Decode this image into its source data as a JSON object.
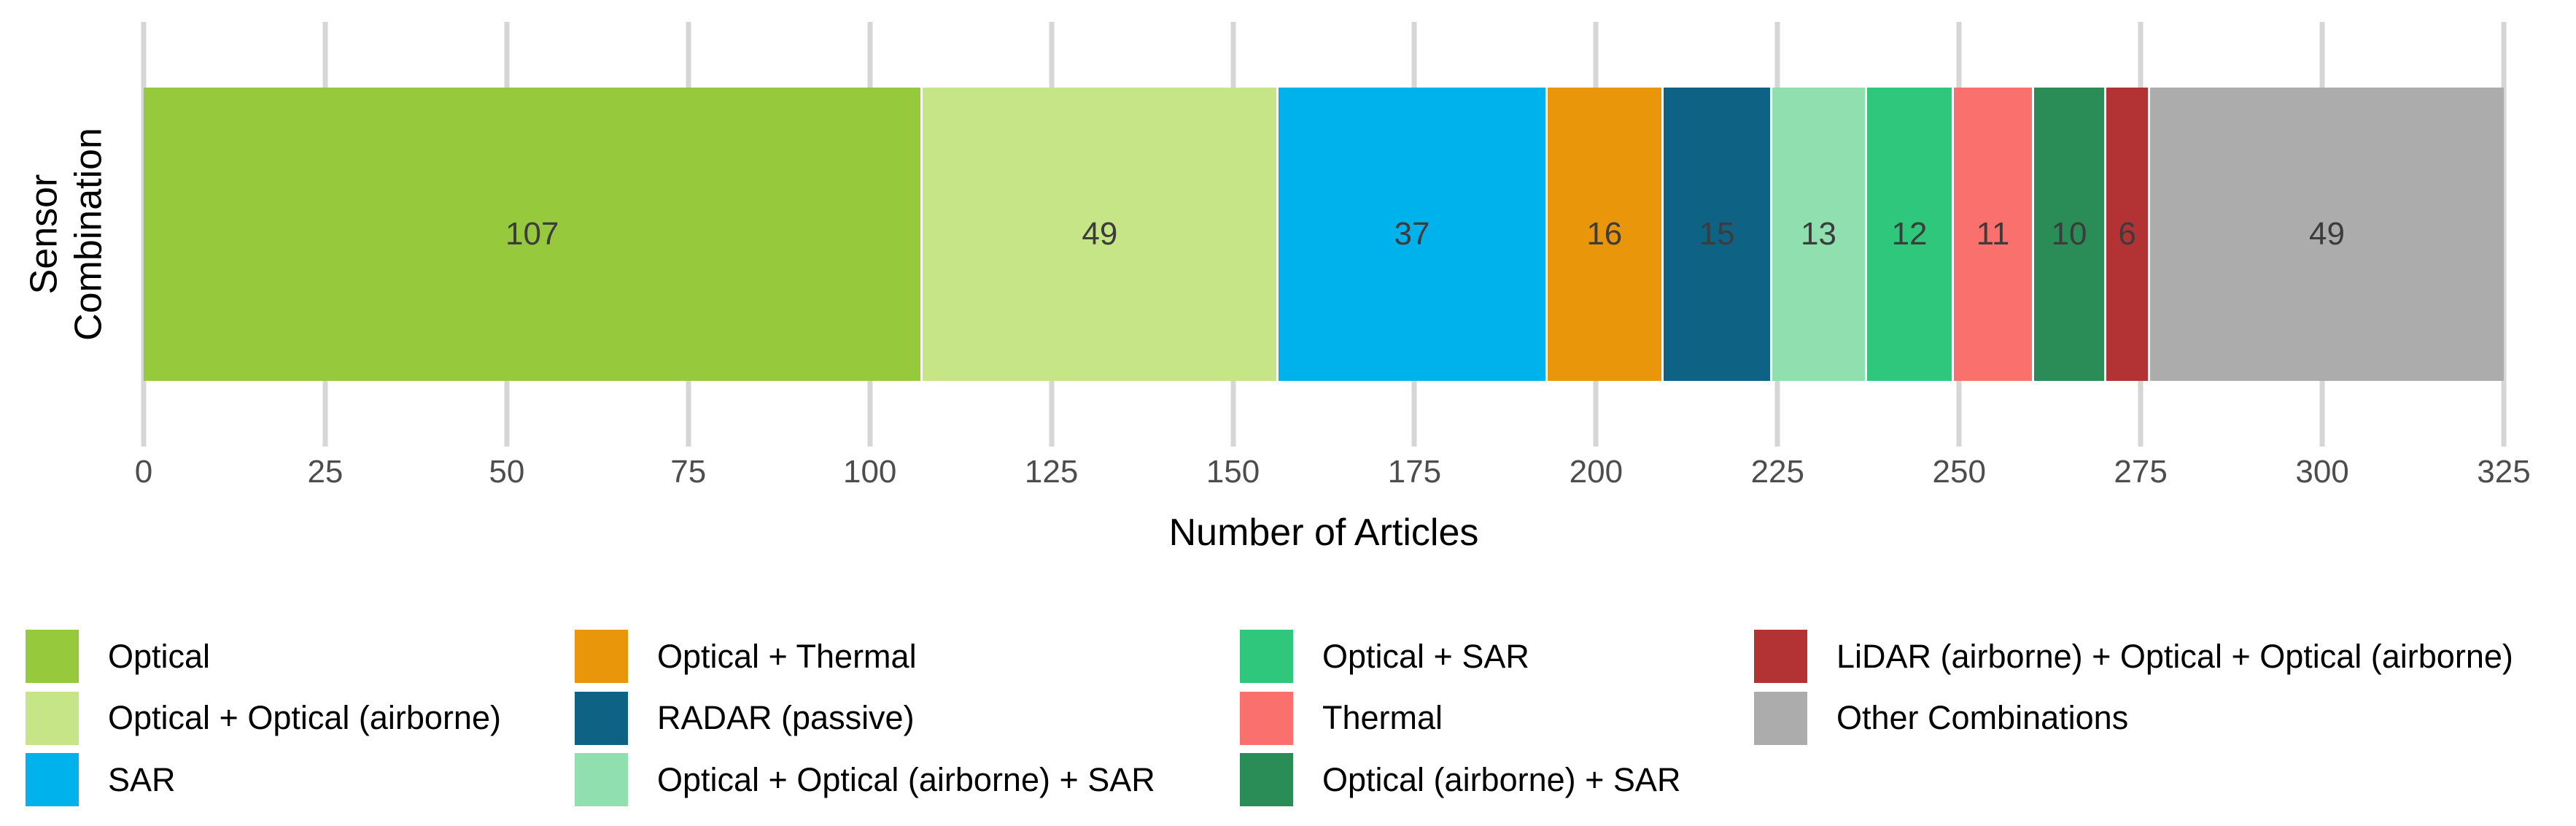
{
  "chart_data": {
    "type": "bar",
    "orientation": "horizontal-stacked",
    "xlabel": "Number of Articles",
    "ylabel_lines": [
      "Sensor",
      "Combination"
    ],
    "xlim": [
      0,
      325
    ],
    "x_ticks": [
      0,
      25,
      50,
      75,
      100,
      125,
      150,
      175,
      200,
      225,
      250,
      275,
      300,
      325
    ],
    "grid": true,
    "legend_position": "bottom",
    "segments": [
      {
        "label": "Optical",
        "value": 107,
        "color": "#96CA3C"
      },
      {
        "label": "Optical + Optical (airborne)",
        "value": 49,
        "color": "#C5E586"
      },
      {
        "label": "SAR",
        "value": 37,
        "color": "#00B2EC"
      },
      {
        "label": "Optical + Thermal",
        "value": 16,
        "color": "#E9960A"
      },
      {
        "label": "RADAR (passive)",
        "value": 15,
        "color": "#0E6284"
      },
      {
        "label": "Optical + Optical (airborne) + SAR",
        "value": 13,
        "color": "#8FDFAF"
      },
      {
        "label": "Optical + SAR",
        "value": 12,
        "color": "#2FC77C"
      },
      {
        "label": "Thermal",
        "value": 11,
        "color": "#F9706C"
      },
      {
        "label": "Optical (airborne) + SAR",
        "value": 10,
        "color": "#2A8C56"
      },
      {
        "label": "LiDAR (airborne) + Optical + Optical (airborne)",
        "value": 6,
        "color": "#B33234"
      },
      {
        "label": "Other Combinations",
        "value": 49,
        "color": "#ACACAC"
      }
    ],
    "legend_columns": [
      [
        0,
        1,
        2
      ],
      [
        3,
        4,
        5
      ],
      [
        6,
        7,
        8
      ],
      [
        9,
        10
      ]
    ]
  }
}
